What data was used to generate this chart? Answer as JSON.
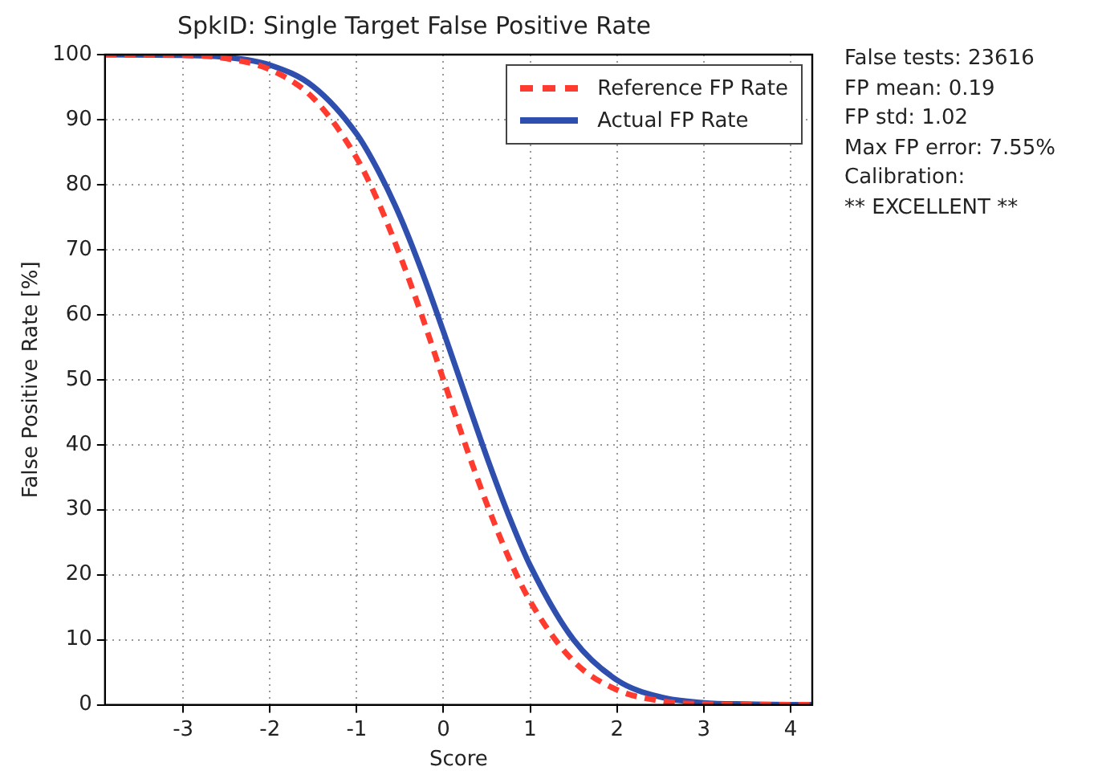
{
  "chart_data": {
    "type": "line",
    "title": "SpkID: Single Target False Positive Rate",
    "xlabel": "Score",
    "ylabel": "False Positive Rate [%]",
    "xlim": [
      -3.9,
      4.25
    ],
    "xticks": [
      -3,
      -2,
      -1,
      0,
      1,
      2,
      3,
      4
    ],
    "ylim": [
      0,
      100
    ],
    "yticks": [
      0,
      10,
      20,
      30,
      40,
      50,
      60,
      70,
      80,
      90,
      100
    ],
    "grid": true,
    "legend": "top right",
    "series": [
      {
        "name": "Reference FP Rate",
        "color": "#ff3b2f",
        "line_style": "dashed",
        "x": [
          -3.9,
          -3,
          -2.5,
          -2,
          -1.5,
          -1,
          -0.75,
          -0.5,
          -0.25,
          0,
          0.25,
          0.5,
          0.75,
          1,
          1.5,
          2,
          2.5,
          3,
          3.5,
          4.25
        ],
        "values": [
          100,
          99.9,
          99.4,
          97.7,
          93.3,
          84.1,
          77.3,
          69.1,
          59.9,
          50,
          40.1,
          30.9,
          22.7,
          15.9,
          6.7,
          2.3,
          0.6,
          0.1,
          0,
          0
        ]
      },
      {
        "name": "Actual FP Rate",
        "color": "#2f4faf",
        "line_style": "solid",
        "x": [
          -3.9,
          -3,
          -2.5,
          -2,
          -1.5,
          -1,
          -0.75,
          -0.5,
          -0.25,
          0,
          0.25,
          0.5,
          0.75,
          1,
          1.5,
          2,
          2.5,
          3,
          3.5,
          4.25
        ],
        "values": [
          100,
          99.9,
          99.6,
          98.4,
          95.1,
          87.8,
          82.1,
          75.1,
          66.7,
          57.4,
          47.7,
          38.1,
          29.2,
          21.4,
          10,
          3.8,
          1.2,
          0.3,
          0.1,
          0
        ]
      }
    ],
    "annotations": [
      "False tests: 23616",
      "FP mean: 0.19",
      "FP std: 1.02",
      "Max FP error: 7.55%",
      "Calibration:",
      "** EXCELLENT **"
    ]
  }
}
